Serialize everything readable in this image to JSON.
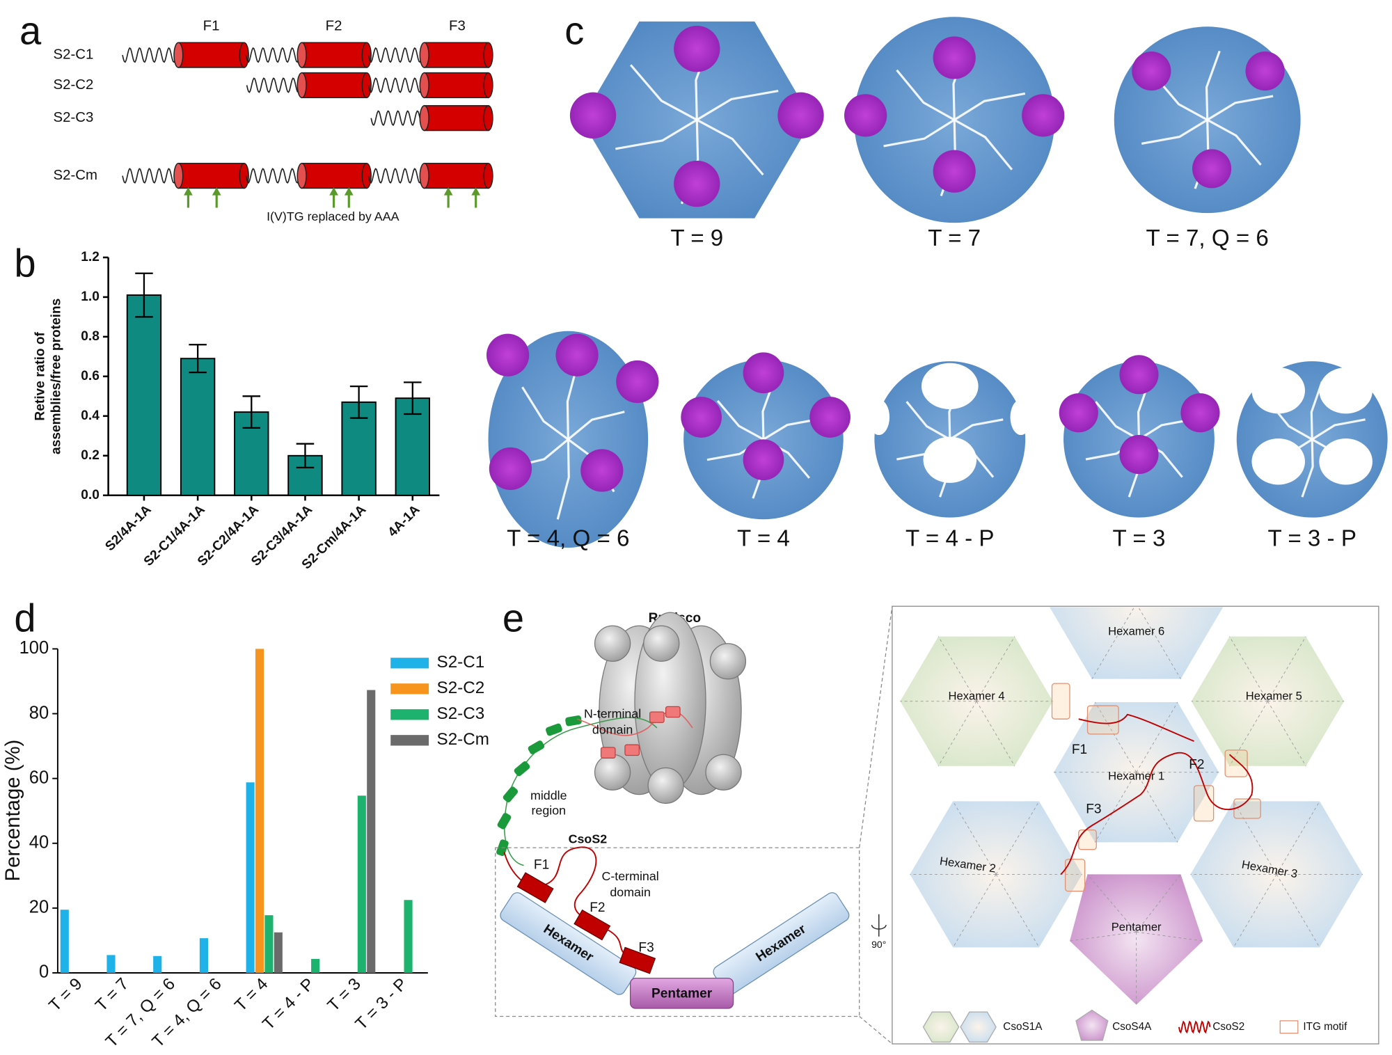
{
  "panel_labels": [
    "a",
    "b",
    "c",
    "d",
    "e"
  ],
  "panel_a": {
    "fragments": [
      "F1",
      "F2",
      "F3"
    ],
    "constructs": [
      "S2-C1",
      "S2-C2",
      "S2-C3",
      "S2-Cm"
    ],
    "note": "I(V)TG replaced by AAA"
  },
  "chart_data": [
    {
      "type": "bar",
      "ylabel": [
        "Retive ratio of",
        "assemblies/free proteins"
      ],
      "categories": [
        "S2/4A-1A",
        "S2-C1/4A-1A",
        "S2-C2/4A-1A",
        "S2-C3/4A-1A",
        "S2-Cm/4A-1A",
        "4A-1A"
      ],
      "values": [
        1.01,
        0.69,
        0.42,
        0.2,
        0.47,
        0.49
      ],
      "errors": [
        0.11,
        0.07,
        0.08,
        0.06,
        0.08,
        0.08
      ],
      "color": "#0e8a80",
      "ylim": [
        0,
        1.2
      ],
      "yticks": [
        {
          "value": 0,
          "label": "0.0"
        },
        0.2,
        0.4,
        0.6,
        0.8,
        {
          "value": 1,
          "label": "1.0"
        },
        1.2
      ]
    },
    {
      "type": "bar",
      "ylabel": "Percentage (%)",
      "categories": [
        "T = 9",
        "T = 7",
        "T = 7, Q = 6",
        "T = 4, Q = 6",
        "T = 4",
        "T = 4 - P",
        "T = 3",
        "T = 3 - P"
      ],
      "series": [
        {
          "name": "S2-C1",
          "color": "#1eb2e8",
          "values": [
            19.5,
            5.5,
            5.2,
            10.7,
            58.8,
            0,
            0,
            0
          ]
        },
        {
          "name": "S2-C2",
          "color": "#f7941d",
          "values": [
            0,
            0,
            0,
            0,
            100,
            0,
            0,
            0
          ]
        },
        {
          "name": "S2-C3",
          "color": "#1db36e",
          "values": [
            0,
            0,
            0,
            0,
            17.8,
            4.3,
            54.7,
            22.5
          ]
        },
        {
          "name": "S2-Cm",
          "color": "#6b6b6b",
          "values": [
            0,
            0,
            0,
            0,
            12.5,
            0,
            87.3,
            0
          ]
        }
      ],
      "ylim": [
        0,
        100
      ],
      "yticks": [
        0,
        20,
        40,
        60,
        80,
        100
      ],
      "legend": "upper right"
    }
  ],
  "panel_c": {
    "structures": [
      "T = 9",
      "T = 7",
      "T = 7, Q = 6",
      "T = 4, Q = 6",
      "T = 4",
      "T = 4 - P",
      "T = 3",
      "T = 3 - P"
    ]
  },
  "panel_e": {
    "rubisco": "Rubisco",
    "n_terminal": [
      "N-terminal",
      "domain"
    ],
    "middle": [
      "middle",
      "region"
    ],
    "csos2": "CsoS2",
    "c_terminal": [
      "C-terminal",
      "domain"
    ],
    "fragments": [
      "F1",
      "F2",
      "F3"
    ],
    "side_hexamers": [
      "Hexamer",
      "Hexamer"
    ],
    "side_pentamer": "Pentamer",
    "rotation": "90°",
    "hexamers": [
      "Hexamer 1",
      "Hexamer 2",
      "Hexamer 3",
      "Hexamer 4",
      "Hexamer 5",
      "Hexamer 6"
    ],
    "pentamer": "Pentamer",
    "motif_fragments": [
      "F1",
      "F2",
      "F3"
    ],
    "legend": [
      "CsoS1A",
      "CsoS4A",
      "CsoS2",
      "ITG motif"
    ]
  }
}
